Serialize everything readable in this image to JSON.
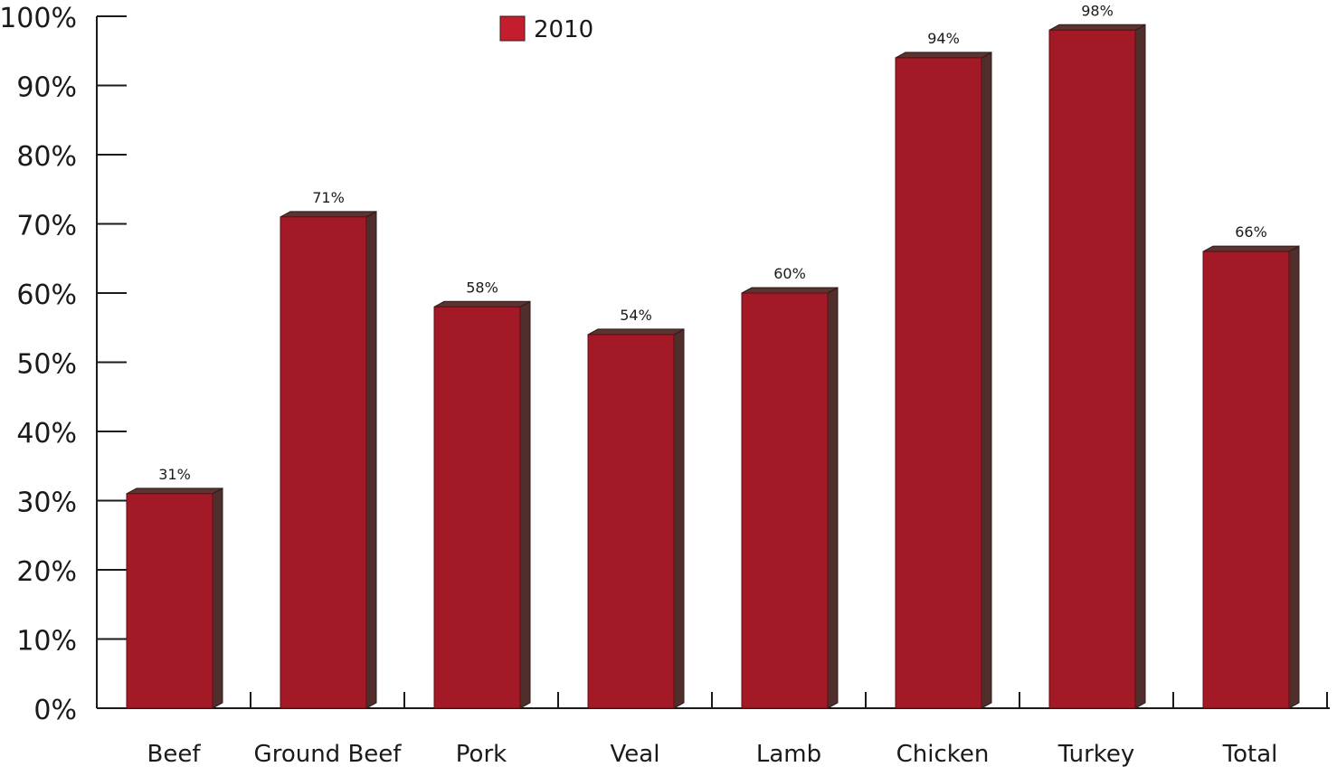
{
  "chart_data": {
    "type": "bar",
    "categories": [
      "Beef",
      "Ground Beef",
      "Pork",
      "Veal",
      "Lamb",
      "Chicken",
      "Turkey",
      "Total"
    ],
    "series": [
      {
        "name": "2010",
        "values": [
          31,
          71,
          58,
          54,
          60,
          94,
          98,
          66
        ],
        "color": "#a31a26"
      }
    ],
    "data_labels": [
      "31%",
      "71%",
      "58%",
      "54%",
      "60%",
      "94%",
      "98%",
      "66%"
    ],
    "y_ticks": [
      "0%",
      "10%",
      "20%",
      "30%",
      "40%",
      "50%",
      "60%",
      "70%",
      "80%",
      "90%",
      "100%"
    ],
    "ylim": [
      0,
      100
    ],
    "title": "",
    "xlabel": "",
    "ylabel": "",
    "grid": false,
    "legend_position": "top-center",
    "style": "3d-bars",
    "colors": {
      "bar_front": "#a31a26",
      "bar_side": "#4f2e2c",
      "bar_top": "#5c3330",
      "legend_swatch": "#c41e2e"
    }
  }
}
